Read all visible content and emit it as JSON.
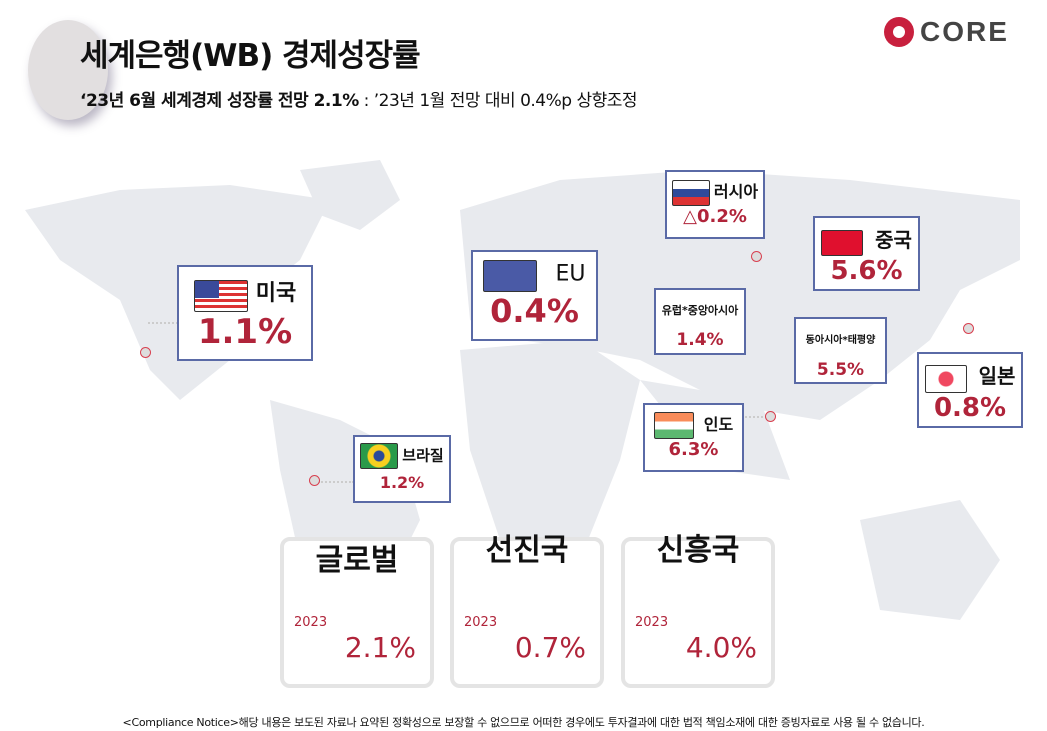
{
  "header": {
    "title": "세계은행(WB) 경제성장률",
    "subtitle_bold": "‘23년 6월 세계경제 성장률 전망 2.1%",
    "subtitle_rest": " : ’23년 1월 전망 대비 0.4%p 상향조정",
    "logo_text": "CORE"
  },
  "countries": {
    "us": {
      "name": "미국",
      "value": "1.1%"
    },
    "eu": {
      "name": "EU",
      "value": "0.4%"
    },
    "russia": {
      "name": "러시아",
      "value": "△0.2%"
    },
    "china": {
      "name": "중국",
      "value": "5.6%"
    },
    "europe_central_asia": {
      "name": "유럽*중앙아시아",
      "value": "1.4%"
    },
    "east_asia_pacific": {
      "name": "동아시아*태평양",
      "value": "5.5%"
    },
    "japan": {
      "name": "일본",
      "value": "0.8%"
    },
    "india": {
      "name": "인도",
      "value": "6.3%"
    },
    "brazil": {
      "name": "브라질",
      "value": "1.2%"
    }
  },
  "cards": [
    {
      "title": "글로벌",
      "year": "2023",
      "value": "2.1%"
    },
    {
      "title": "선진국",
      "year": "2023",
      "value": "0.7%"
    },
    {
      "title": "신흥국",
      "year": "2023",
      "value": "4.0%"
    }
  ],
  "notice": "<Compliance Notice>해당 내용은 보도된 자료나 요약된 정확성으로 보장할 수 없으므로 어떠한 경우에도 투자결과에 대한 법적 책임소재에 대한 증빙자료로 사용 될 수 없습니다.",
  "colors": {
    "accent": "#b0243a",
    "border": "#5a6aa6",
    "map": "#e6e8ec"
  }
}
